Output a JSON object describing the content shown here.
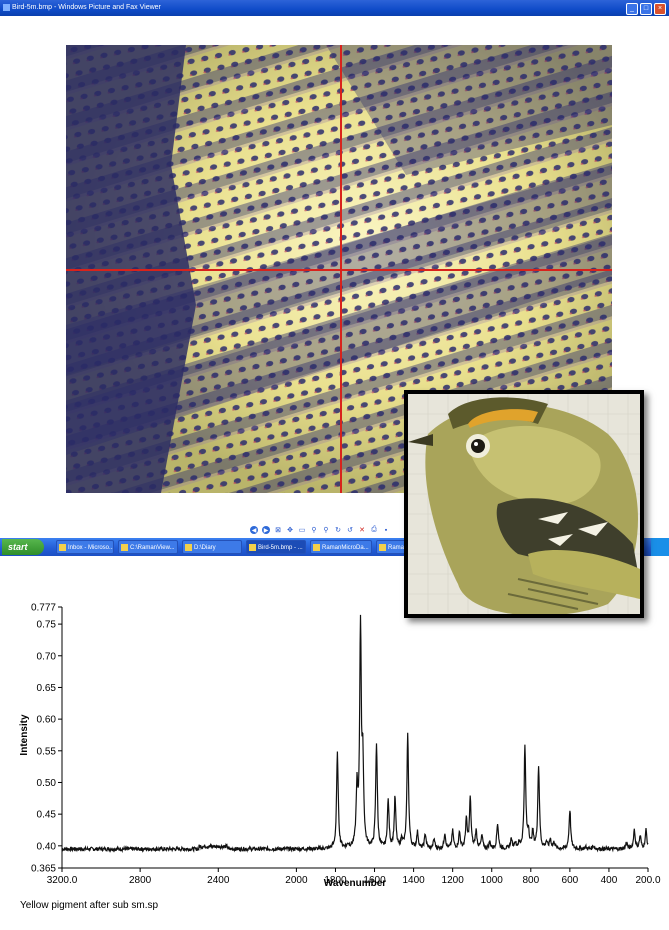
{
  "window": {
    "title": "Bird-5m.bmp - Windows Picture and Fax Viewer"
  },
  "viewer_toolbar": {
    "icons": [
      "previous-icon",
      "next-icon",
      "best-fit-icon",
      "actual-size-icon",
      "slideshow-icon",
      "zoom-in-icon",
      "zoom-out-icon",
      "rotate-cw-icon",
      "rotate-ccw-icon",
      "delete-icon",
      "print-icon",
      "save-icon"
    ]
  },
  "taskbar": {
    "start_label": "start",
    "tasks": [
      {
        "label": "Inbox - Microso..."
      },
      {
        "label": "C:\\RamanView..."
      },
      {
        "label": "D:\\Diary"
      },
      {
        "label": "Bird-5m.bmp - ..."
      },
      {
        "label": "RamanMicroDa..."
      },
      {
        "label": "Raman"
      }
    ]
  },
  "colors": {
    "crosshair": "#d8231c",
    "pigment_yellow": "#e8e29a",
    "fiber_blue": "#2c2e6e",
    "spectrum_line": "#111111"
  },
  "chart_data": {
    "type": "line",
    "title": "",
    "xlabel": "Wavenumber",
    "ylabel": "Intensity",
    "caption": "Yellow pigment after sub sm.sp",
    "xlim": [
      3200.0,
      200.0
    ],
    "ylim": [
      0.365,
      0.777
    ],
    "x_reversed": true,
    "xticks": [
      "3200.0",
      "2800",
      "2400",
      "2000",
      "1600",
      "1200",
      "800",
      "400",
      "200.0"
    ],
    "xticks_all": [
      "3200.0",
      "2800",
      "2400",
      "2000",
      "1800",
      "1600",
      "1400",
      "1200",
      "1000",
      "800",
      "600",
      "400",
      "200.0"
    ],
    "yticks": [
      "0.777",
      "0.75",
      "0.70",
      "0.65",
      "0.60",
      "0.55",
      "0.50",
      "0.45",
      "0.40",
      "0.365"
    ],
    "baseline": 0.395,
    "peaks": [
      {
        "x": 1790,
        "y": 0.545
      },
      {
        "x": 1735,
        "y": 0.4
      },
      {
        "x": 1690,
        "y": 0.485
      },
      {
        "x": 1672,
        "y": 0.74
      },
      {
        "x": 1660,
        "y": 0.52
      },
      {
        "x": 1590,
        "y": 0.56
      },
      {
        "x": 1530,
        "y": 0.47
      },
      {
        "x": 1495,
        "y": 0.475
      },
      {
        "x": 1460,
        "y": 0.41
      },
      {
        "x": 1430,
        "y": 0.575
      },
      {
        "x": 1380,
        "y": 0.42
      },
      {
        "x": 1340,
        "y": 0.418
      },
      {
        "x": 1295,
        "y": 0.41
      },
      {
        "x": 1240,
        "y": 0.42
      },
      {
        "x": 1200,
        "y": 0.423
      },
      {
        "x": 1165,
        "y": 0.42
      },
      {
        "x": 1130,
        "y": 0.44
      },
      {
        "x": 1110,
        "y": 0.475
      },
      {
        "x": 1080,
        "y": 0.422
      },
      {
        "x": 1050,
        "y": 0.415
      },
      {
        "x": 1010,
        "y": 0.405
      },
      {
        "x": 970,
        "y": 0.435
      },
      {
        "x": 900,
        "y": 0.41
      },
      {
        "x": 880,
        "y": 0.405
      },
      {
        "x": 860,
        "y": 0.402
      },
      {
        "x": 830,
        "y": 0.555
      },
      {
        "x": 812,
        "y": 0.42
      },
      {
        "x": 790,
        "y": 0.42
      },
      {
        "x": 760,
        "y": 0.525
      },
      {
        "x": 720,
        "y": 0.405
      },
      {
        "x": 700,
        "y": 0.41
      },
      {
        "x": 680,
        "y": 0.405
      },
      {
        "x": 600,
        "y": 0.457
      },
      {
        "x": 520,
        "y": 0.398
      },
      {
        "x": 480,
        "y": 0.4
      },
      {
        "x": 310,
        "y": 0.405
      },
      {
        "x": 270,
        "y": 0.425
      },
      {
        "x": 240,
        "y": 0.415
      },
      {
        "x": 210,
        "y": 0.425
      }
    ]
  }
}
